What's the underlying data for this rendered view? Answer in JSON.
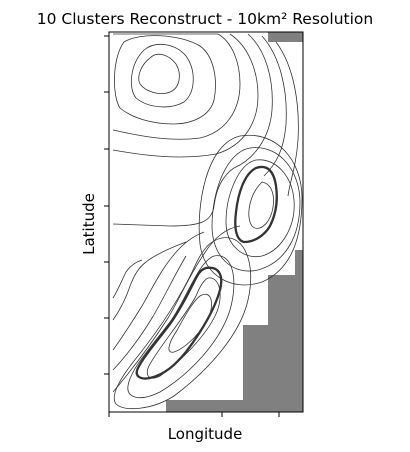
{
  "chart_data": {
    "type": "contour",
    "title": "10 Clusters Reconstruct - 10km² Resolution",
    "xlabel": "Longitude",
    "ylabel": "Latitude",
    "xtick_labels": [
      "",
      "",
      ""
    ],
    "ytick_labels": [
      "",
      "",
      "",
      "",
      "",
      "",
      ""
    ],
    "grid": false,
    "legend": "none",
    "colors": {
      "contour": "#333333",
      "highlight_contour": "#333333",
      "masked_area": "#808080",
      "background": "#ffffff",
      "frame": "#000000"
    }
  }
}
